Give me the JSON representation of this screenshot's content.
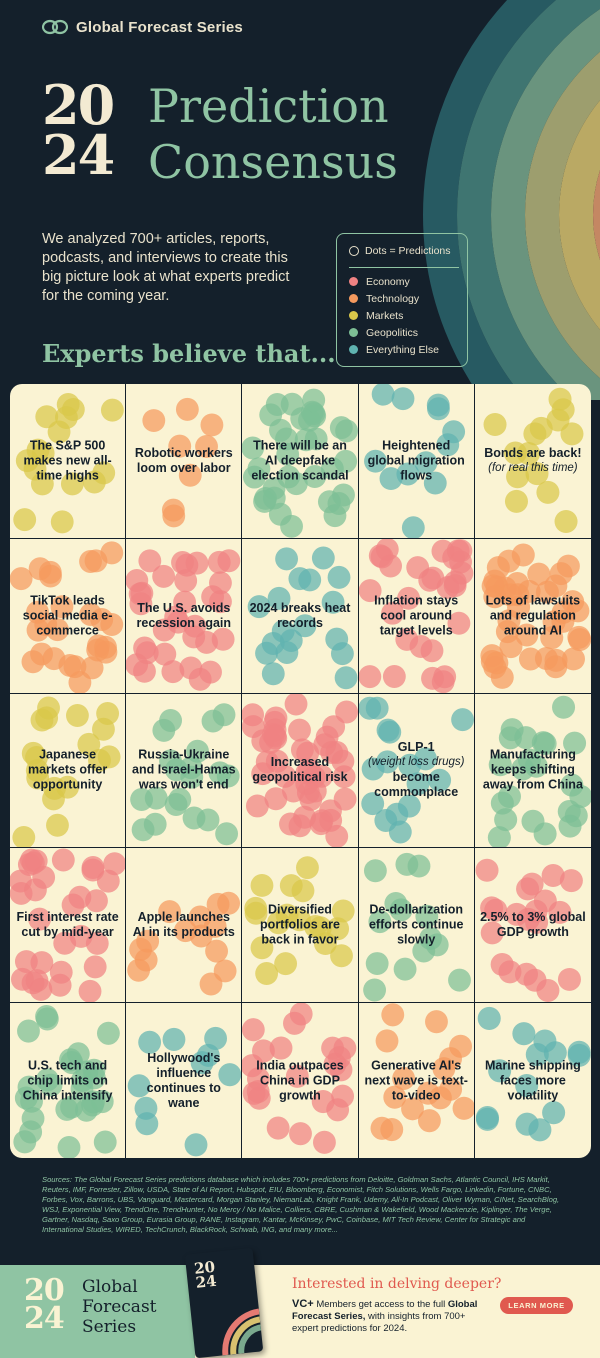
{
  "brand": {
    "name": "Global Forecast Series",
    "icon": "vc-logo-icon"
  },
  "hero": {
    "year_top": "20",
    "year_bottom": "24",
    "title_line1": "Prediction",
    "title_line2": "Consensus"
  },
  "intro": "We analyzed 700+ articles, reports, podcasts, and interviews to create this big picture look at what experts predict for the coming year.",
  "legend": {
    "header": "Dots = Predictions",
    "items": [
      {
        "label": "Economy",
        "color": "#f08282"
      },
      {
        "label": "Technology",
        "color": "#f59a5e"
      },
      {
        "label": "Markets",
        "color": "#d9c74a"
      },
      {
        "label": "Geopolitics",
        "color": "#7dbf95"
      },
      {
        "label": "Everything Else",
        "color": "#5fb3b0"
      }
    ]
  },
  "subhead": "Experts believe that...",
  "colors": {
    "economy": "#f08282",
    "technology": "#f59a5e",
    "markets": "#d9c74a",
    "geopolitics": "#7dbf95",
    "else": "#5fb3b0",
    "background": "#14202b",
    "cream": "#faf3d3"
  },
  "cards": [
    {
      "text": "The S&P 500 makes new all-time highs",
      "category": "markets",
      "dots": 16
    },
    {
      "text": "Robotic workers loom over labor",
      "category": "technology",
      "dots": 8
    },
    {
      "text": "There will be an AI deepfake election scandal",
      "category": "geopolitics",
      "dots": 34
    },
    {
      "text": "Heightened global migration flows",
      "category": "else",
      "dots": 12
    },
    {
      "text": "Bonds are back!",
      "sub": "(for real this time)",
      "category": "markets",
      "dots": 14
    },
    {
      "text": "TikTok leads social media e-commerce",
      "category": "technology",
      "dots": 26
    },
    {
      "text": "The U.S. avoids recession again",
      "category": "economy",
      "dots": 32
    },
    {
      "text": "2024 breaks heat records",
      "category": "else",
      "dots": 18
    },
    {
      "text": "Inflation stays cool around target levels",
      "category": "economy",
      "dots": 28
    },
    {
      "text": "Lots of lawsuits and regulation around AI",
      "category": "technology",
      "dots": 40
    },
    {
      "text": "Japanese markets offer opportunity",
      "category": "markets",
      "dots": 18
    },
    {
      "text": "Russia-Ukraine and Israel-Hamas wars won't end",
      "category": "geopolitics",
      "dots": 20
    },
    {
      "text": "Increased geopolitical risk",
      "category": "economy",
      "dots": 46
    },
    {
      "text": "GLP-1",
      "sub": "(weight loss drugs)",
      "text2": "become commonplace",
      "category": "else",
      "dots": 16
    },
    {
      "text": "Manufacturing keeps shifting away from China",
      "category": "geopolitics",
      "dots": 22
    },
    {
      "text": "First interest rate cut by mid-year",
      "category": "economy",
      "dots": 30
    },
    {
      "text": "Apple launches AI in its products",
      "category": "technology",
      "dots": 14
    },
    {
      "text": "Diversified portfolios are back in favor",
      "category": "markets",
      "dots": 18
    },
    {
      "text": "De-dollarization efforts continue slowly",
      "category": "geopolitics",
      "dots": 14
    },
    {
      "text": "2.5% to 3% global GDP growth",
      "category": "economy",
      "dots": 20
    },
    {
      "text": "U.S. tech and chip limits on China intensify",
      "category": "geopolitics",
      "dots": 28
    },
    {
      "text": "Hollywood's influence continues to wane",
      "category": "else",
      "dots": 10
    },
    {
      "text": "India outpaces China in GDP growth",
      "category": "economy",
      "dots": 22
    },
    {
      "text": "Generative AI's next wave is text-to-video",
      "category": "technology",
      "dots": 16
    },
    {
      "text": "Marine shipping faces more volatility",
      "category": "else",
      "dots": 14
    }
  ],
  "sources": "Sources: The Global Forecast Series predictions database which includes 700+ predictions from Deloitte, Goldman Sachs, Atlantic Council, IHS Markit, Reuters, IMF, Forrester, Zillow, USDA, State of AI Report, Hubspot, EIU, Bloomberg, Economist, Fitch Solutions, Wells Fargo, Linkedin, Fortune, CNBC, Forbes, Vox, Barrons, UBS, Vanguard, Mastercard, Morgan Stanley, NiemanLab, Knight Frank, Udemy, All-In Podcast, Oliver Wyman, CINet, SearchBlog, WSJ, Exponential View, TrendOne, TrendHunter, No Mercy / No Malice, Colliers, CBRE, Cushman & Wakefield, Wood Mackenzie, Kiplinger, The Verge, Gartner, Nasdaq, Saxo Group, Eurasia Group, RANE, Instagram, Kantar, McKinsey, PwC, Coinbase, MIT Tech Review, Center for Strategic and International Studies, WIRED, TechCrunch, BlackRock, Schwab, ING, and many more...",
  "footer": {
    "year_top": "20",
    "year_bottom": "24",
    "series_line1": "Global",
    "series_line2": "Forecast",
    "series_line3": "Series",
    "cta_title": "Interested in delving deeper?",
    "vc_label": "VC+",
    "cta_body_1": " Members get access to the full ",
    "cta_body_bold": "Global Forecast Series,",
    "cta_body_2": " with insights from 700+ expert predictions for 2024.",
    "button": "LEARN MORE"
  }
}
